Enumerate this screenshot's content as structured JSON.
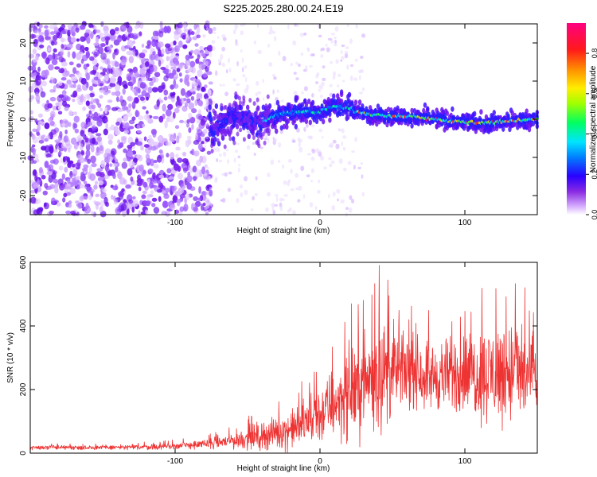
{
  "figure": {
    "title": "S225.2025.280.00.24.E19"
  },
  "chart_data": [
    {
      "type": "heatmap",
      "name": "spectrogram",
      "title": "S225.2025.280.00.24.E19",
      "xlabel": "Height of straight line (km)",
      "ylabel": "Frequency (Hz)",
      "xlim": [
        -200,
        150
      ],
      "ylim": [
        -25,
        25
      ],
      "x_ticks": [
        -100,
        0,
        100
      ],
      "x_tick_labels": [
        "-100",
        "0",
        "100"
      ],
      "y_ticks": [
        -20,
        -10,
        0,
        10,
        20
      ],
      "y_tick_labels": [
        "-20",
        "-10",
        "0",
        "10",
        "20"
      ],
      "colorbar": {
        "label": "Normalized spectral amplitude",
        "range": [
          0.0,
          0.95
        ],
        "ticks": [
          0.0,
          0.2,
          0.4,
          0.6,
          0.8
        ],
        "tick_labels": [
          "0.0",
          "0.2",
          "0.4",
          "0.6",
          "0.8"
        ]
      },
      "regions": [
        {
          "x_range": [
            -200,
            -75
          ],
          "description": "broadband noise, amplitude 0.0-0.15"
        },
        {
          "x_range": [
            -75,
            150
          ],
          "description": "narrow signal trace around 0-3 Hz, amplitude 0.1-0.95"
        }
      ],
      "signal_center_hz": [
        {
          "x": -75,
          "y": -3
        },
        {
          "x": -60,
          "y": 1
        },
        {
          "x": -45,
          "y": -1
        },
        {
          "x": -30,
          "y": 1
        },
        {
          "x": -15,
          "y": 2
        },
        {
          "x": 0,
          "y": 2
        },
        {
          "x": 10,
          "y": 3.5
        },
        {
          "x": 20,
          "y": 3
        },
        {
          "x": 30,
          "y": 1.5
        },
        {
          "x": 50,
          "y": 0.8
        },
        {
          "x": 70,
          "y": 0.5
        },
        {
          "x": 90,
          "y": -0.5
        },
        {
          "x": 110,
          "y": -1
        },
        {
          "x": 130,
          "y": -0.5
        },
        {
          "x": 150,
          "y": 0
        }
      ]
    },
    {
      "type": "line",
      "name": "snr",
      "xlabel": "Height of straight line (km)",
      "ylabel": "SNR (10 * v/v)",
      "xlim": [
        -200,
        150
      ],
      "ylim": [
        0,
        600
      ],
      "x_ticks": [
        -100,
        0,
        100
      ],
      "x_tick_labels": [
        "-100",
        "0",
        "100"
      ],
      "y_ticks": [
        0,
        200,
        400,
        600
      ],
      "y_tick_labels": [
        "0",
        "200",
        "400",
        "600"
      ],
      "color": "#ee3333",
      "envelope": [
        {
          "x": -200,
          "mean": 18,
          "peak": 32
        },
        {
          "x": -150,
          "mean": 18,
          "peak": 32
        },
        {
          "x": -110,
          "mean": 20,
          "peak": 38
        },
        {
          "x": -80,
          "mean": 28,
          "peak": 55
        },
        {
          "x": -60,
          "mean": 40,
          "peak": 95
        },
        {
          "x": -40,
          "mean": 55,
          "peak": 140
        },
        {
          "x": -20,
          "mean": 75,
          "peak": 190
        },
        {
          "x": 0,
          "mean": 120,
          "peak": 300
        },
        {
          "x": 10,
          "mean": 160,
          "peak": 380
        },
        {
          "x": 20,
          "mean": 190,
          "peak": 470
        },
        {
          "x": 30,
          "mean": 220,
          "peak": 510
        },
        {
          "x": 40,
          "mean": 250,
          "peak": 600
        },
        {
          "x": 60,
          "mean": 260,
          "peak": 470
        },
        {
          "x": 80,
          "mean": 240,
          "peak": 450
        },
        {
          "x": 100,
          "mean": 250,
          "peak": 500
        },
        {
          "x": 120,
          "mean": 250,
          "peak": 560
        },
        {
          "x": 135,
          "mean": 260,
          "peak": 590
        },
        {
          "x": 150,
          "mean": 230,
          "peak": 500
        }
      ]
    }
  ]
}
